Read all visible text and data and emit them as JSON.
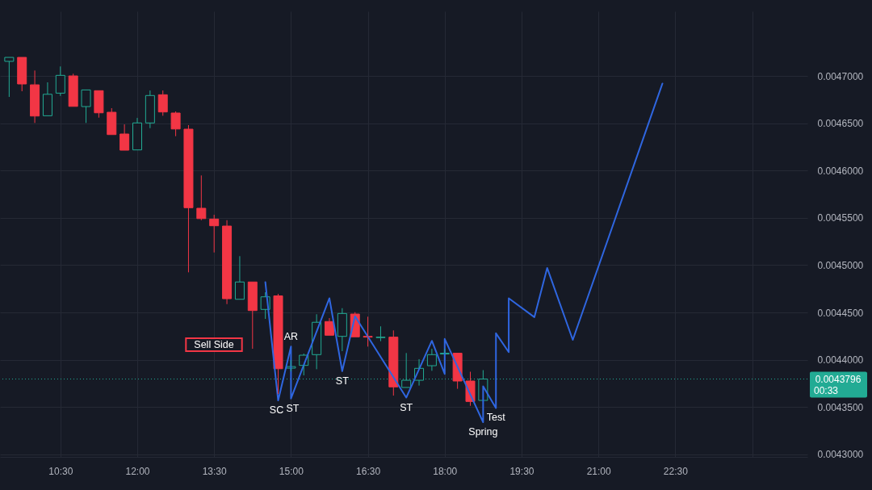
{
  "chart_data": {
    "type": "candlestick",
    "x": [
      9.5,
      9.75,
      10,
      10.25,
      10.5,
      10.75,
      11,
      11.25,
      11.5,
      11.75,
      12,
      12.25,
      12.5,
      12.75,
      13,
      13.25,
      13.5,
      13.75,
      14,
      14.25,
      14.5,
      14.75,
      15,
      15.25,
      15.5,
      15.75,
      16,
      16.25,
      16.5,
      16.75,
      17,
      17.25,
      17.5,
      17.75,
      18,
      18.25,
      18.5,
      18.75
    ],
    "ohlc": [
      [
        0.0047154,
        0.0047196,
        0.0046778,
        0.0047196
      ],
      [
        0.0047196,
        0.0047196,
        0.0046838,
        0.0046915
      ],
      [
        0.0046906,
        0.0047057,
        0.0046503,
        0.0046576
      ],
      [
        0.0046579,
        0.0046932,
        0.0046579,
        0.0046806
      ],
      [
        0.0046818,
        0.00471,
        0.0046789,
        0.0047006
      ],
      [
        0.0047,
        0.0047023,
        0.0046678,
        0.0046678
      ],
      [
        0.0046676,
        0.0046852,
        0.0046503,
        0.0046852
      ],
      [
        0.0046844,
        0.0046844,
        0.0046559,
        0.004661
      ],
      [
        0.0046616,
        0.0046659,
        0.004638,
        0.004638
      ],
      [
        0.0046386,
        0.0046488,
        0.0046215,
        0.0046215
      ],
      [
        0.0046218,
        0.0046556,
        0.0046218,
        0.0046503
      ],
      [
        0.0046503,
        0.0046846,
        0.0046448,
        0.0046793
      ],
      [
        0.0046801,
        0.0046846,
        0.0046579,
        0.0046619
      ],
      [
        0.0046608,
        0.0046625,
        0.0046363,
        0.0046439
      ],
      [
        0.0046437,
        0.004648,
        0.0044924,
        0.0045607
      ],
      [
        0.0045601,
        0.0045948,
        0.0045475,
        0.0045492
      ],
      [
        0.0045487,
        0.0045532,
        0.0045134,
        0.0045416
      ],
      [
        0.0045413,
        0.0045475,
        0.0044588,
        0.0044645
      ],
      [
        0.0044639,
        0.0045095,
        0.0044639,
        0.0044822
      ],
      [
        0.0044822,
        0.0044822,
        0.0044116,
        0.004452
      ],
      [
        0.0044532,
        0.0044713,
        0.0044432,
        0.0044665
      ],
      [
        0.0044675,
        0.0044696,
        0.0043638,
        0.0043905
      ],
      [
        0.0043911,
        0.0043996,
        0.0043877,
        0.0043928
      ],
      [
        0.004394,
        0.0044065,
        0.0043835,
        0.0044048
      ],
      [
        0.0044054,
        0.0044481,
        0.00439,
        0.0044396
      ],
      [
        0.0044404,
        0.004444,
        0.0044259,
        0.0044259
      ],
      [
        0.0044247,
        0.0044545,
        0.0044091,
        0.0044489
      ],
      [
        0.0044483,
        0.0044503,
        0.0044242,
        0.0044242
      ],
      [
        0.0044247,
        0.0044455,
        0.0044139,
        0.0044239
      ],
      [
        0.0044234,
        0.0044353,
        0.0044196,
        0.0044239
      ],
      [
        0.0044239,
        0.004431,
        0.0043621,
        0.0043713
      ],
      [
        0.0043707,
        0.0044071,
        0.0043707,
        0.0043783
      ],
      [
        0.0043783,
        0.0044006,
        0.0043727,
        0.0043909
      ],
      [
        0.0043937,
        0.0044116,
        0.0043883,
        0.0044054
      ],
      [
        0.004406,
        0.0044116,
        0.004406,
        0.0044069
      ],
      [
        0.0044069,
        0.0044069,
        0.0043693,
        0.0043775
      ],
      [
        0.0043775,
        0.0043873,
        0.0043513,
        0.0043559
      ],
      [
        0.004357,
        0.004389,
        0.004357,
        0.0043796
      ]
    ],
    "colors": [
      "#22ab94",
      "#f23645",
      "#f23645",
      "#22ab94",
      "#22ab94",
      "#f23645",
      "#22ab94",
      "#f23645",
      "#f23645",
      "#f23645",
      "#22ab94",
      "#22ab94",
      "#f23645",
      "#f23645",
      "#f23645",
      "#f23645",
      "#f23645",
      "#f23645",
      "#22ab94",
      "#f23645",
      "#22ab94",
      "#f23645",
      "#22ab94",
      "#22ab94",
      "#22ab94",
      "#f23645",
      "#22ab94",
      "#f23645",
      "#f23645",
      "#22ab94",
      "#f23645",
      "#22ab94",
      "#22ab94",
      "#22ab94",
      "#22ab94",
      "#f23645",
      "#f23645",
      "#22ab94"
    ],
    "series": [
      {
        "type": "line",
        "color": "#2f66e0",
        "x": [
          14.5,
          14.75,
          15,
          15,
          15.75,
          16,
          16.25,
          17.25,
          17.75,
          18,
          18,
          18.75,
          18.75,
          19,
          19,
          19.25,
          19.25,
          19.75,
          20,
          20.5,
          22.25
        ],
        "values": [
          0.004482,
          0.004357,
          0.004414,
          0.004359,
          0.004465,
          0.004388,
          0.004446,
          0.00436,
          0.00442,
          0.004385,
          0.004422,
          0.004334,
          0.004372,
          0.004349,
          0.004428,
          0.004408,
          0.004465,
          0.004445,
          0.004497,
          0.004421,
          0.004692
        ]
      }
    ],
    "xlim": [
      9.4,
      25.0
    ],
    "ylim": [
      0.0042973,
      0.0047683
    ],
    "xticks": [
      {
        "value": 10.5,
        "label": "10:30"
      },
      {
        "value": 12,
        "label": "12:00"
      },
      {
        "value": 13.5,
        "label": "13:30"
      },
      {
        "value": 15,
        "label": "15:00"
      },
      {
        "value": 16.5,
        "label": "16:30"
      },
      {
        "value": 18,
        "label": "18:00"
      },
      {
        "value": 19.5,
        "label": "19:30"
      },
      {
        "value": 21,
        "label": "21:00"
      },
      {
        "value": 22.5,
        "label": "22:30"
      },
      {
        "value": 24,
        "label": null
      }
    ],
    "yticks": [
      {
        "value": 0.0043,
        "label": "0.0043000"
      },
      {
        "value": 0.00435,
        "label": "0.0043500"
      },
      {
        "value": 0.0044,
        "label": "0.0044000"
      },
      {
        "value": 0.00445,
        "label": "0.0044500"
      },
      {
        "value": 0.0045,
        "label": "0.0045000"
      },
      {
        "value": 0.00455,
        "label": "0.0045500"
      },
      {
        "value": 0.0046,
        "label": "0.0046000"
      },
      {
        "value": 0.00465,
        "label": "0.0046500"
      },
      {
        "value": 0.0047,
        "label": "0.0047000"
      }
    ],
    "grid": true,
    "ref_lines": [
      {
        "axis": "y",
        "value": 0.0043796,
        "label": "0.0043796",
        "color": "#22ab94",
        "line_style": "dotted"
      }
    ],
    "annotations": [
      {
        "text": "SC",
        "x": 14.75,
        "y": 0.004357
      },
      {
        "text": "ST",
        "x": 15,
        "y": 0.004359
      },
      {
        "text": "AR",
        "x": 15,
        "y": 0.004414
      },
      "Sell Side",
      {
        "text": "ST",
        "x": 16,
        "y": 0.004388
      },
      {
        "text": "ST",
        "x": 17.25,
        "y": 0.00436
      },
      {
        "text": "Spring",
        "x": 18.75,
        "y": 0.004334
      },
      {
        "text": "Test",
        "x": 19,
        "y": 0.004349
      },
      "00:33"
    ]
  }
}
